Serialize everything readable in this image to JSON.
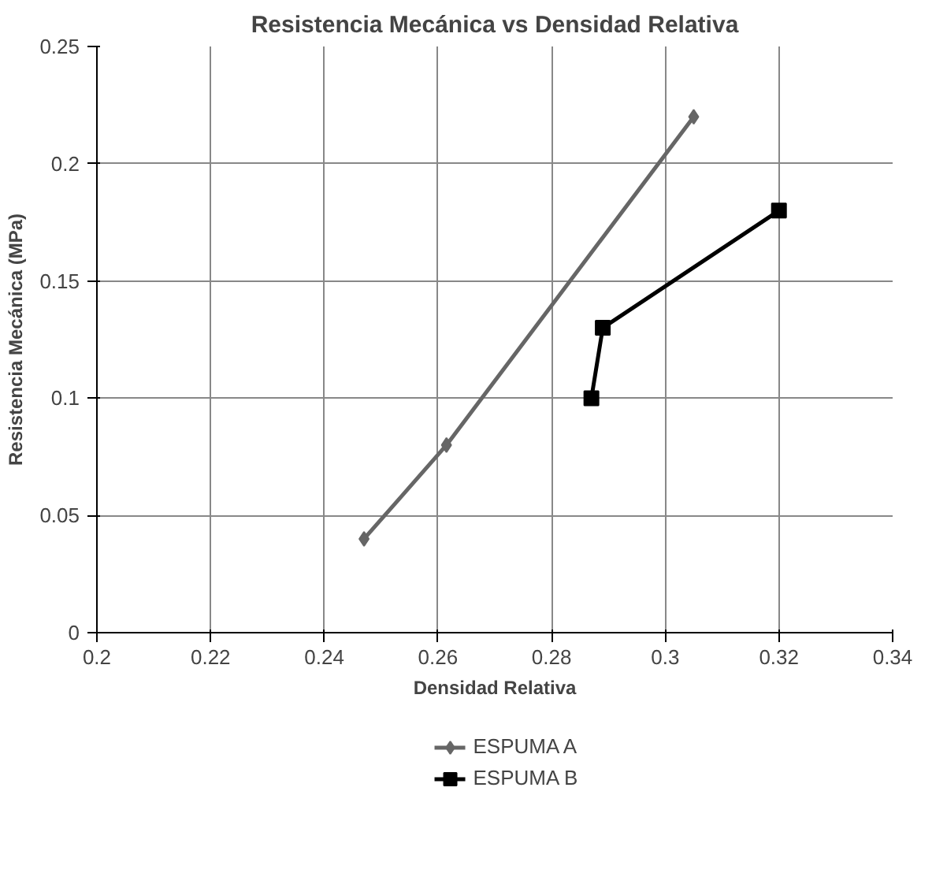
{
  "chart_data": {
    "type": "line",
    "title": "Resistencia Mecánica vs Densidad Relativa",
    "xlabel": "Densidad Relativa",
    "ylabel": "Resistencia Mecánica (MPa)",
    "xlim": [
      0.2,
      0.34
    ],
    "xticks": [
      0.2,
      0.22,
      0.24,
      0.26,
      0.28,
      0.3,
      0.32,
      0.34
    ],
    "ylim": [
      0,
      0.25
    ],
    "yticks": [
      0,
      0.05,
      0.1,
      0.15,
      0.2,
      0.25
    ],
    "grid": true,
    "legend": "bottom",
    "series": [
      {
        "name": "ESPUMA A",
        "color": "#666666",
        "marker": "diamond",
        "x": [
          0.247,
          0.2615,
          0.305
        ],
        "values": [
          0.04,
          0.08,
          0.22
        ]
      },
      {
        "name": "ESPUMA B",
        "color": "#000000",
        "marker": "square",
        "x": [
          0.287,
          0.289,
          0.32
        ],
        "values": [
          0.1,
          0.13,
          0.18
        ]
      }
    ]
  }
}
